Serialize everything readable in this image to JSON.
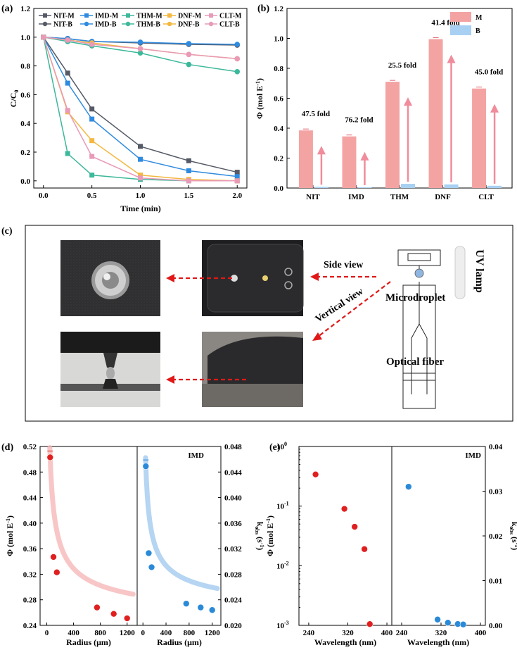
{
  "panel_labels": {
    "a": "(a)",
    "b": "(b)",
    "c": "(c)",
    "d": "(d)",
    "e": "(e)"
  },
  "colors": {
    "NIT": "#555a66",
    "IMD": "#2f8be0",
    "THM": "#3cb89a",
    "DNF": "#f4b73f",
    "CLT": "#e89ab8",
    "bar_M": "#f4a3a3",
    "bar_B": "#a8d0f2",
    "red_pt": "#e02020",
    "blue_pt": "#2a8ad8",
    "red_fit": "#f5b3b3",
    "blue_fit": "#9cc7ee",
    "arrow": "#f08c9c",
    "dash_arrow": "#e01818"
  },
  "chart_data": [
    {
      "id": "a",
      "type": "line",
      "xlabel": "Time (min)",
      "ylabel": "C/C",
      "ylabel_sub": "0",
      "xlim": [
        -0.1,
        2.1
      ],
      "ylim": [
        -0.05,
        1.2
      ],
      "xticks": [
        "0.0",
        "0.5",
        "1.0",
        "1.5",
        "2.0"
      ],
      "yticks": [
        "0.0",
        "0.2",
        "0.4",
        "0.6",
        "0.8",
        "1.0",
        "1.2"
      ],
      "x": [
        0,
        0.25,
        0.5,
        1.0,
        1.5,
        2.0
      ],
      "series": [
        {
          "name": "NIT-M",
          "color_key": "NIT",
          "marker": "square",
          "values": [
            1.0,
            0.75,
            0.5,
            0.24,
            0.14,
            0.06
          ]
        },
        {
          "name": "IMD-M",
          "color_key": "IMD",
          "marker": "square",
          "values": [
            1.0,
            0.68,
            0.43,
            0.15,
            0.07,
            0.03
          ]
        },
        {
          "name": "THM-M",
          "color_key": "THM",
          "marker": "square",
          "values": [
            1.0,
            0.19,
            0.04,
            0.01,
            0.0,
            0.0
          ]
        },
        {
          "name": "DNF-M",
          "color_key": "DNF",
          "marker": "square",
          "values": [
            1.0,
            0.48,
            0.28,
            0.04,
            0.01,
            0.0
          ]
        },
        {
          "name": "CLT-M",
          "color_key": "CLT",
          "marker": "square",
          "values": [
            1.0,
            0.49,
            0.17,
            0.02,
            0.0,
            0.0
          ]
        },
        {
          "name": "NIT-B",
          "color_key": "NIT",
          "marker": "circle",
          "values": [
            1.0,
            0.99,
            0.97,
            0.96,
            0.95,
            0.945
          ]
        },
        {
          "name": "IMD-B",
          "color_key": "IMD",
          "marker": "circle",
          "values": [
            1.0,
            0.99,
            0.97,
            0.965,
            0.955,
            0.95
          ]
        },
        {
          "name": "THM-B",
          "color_key": "THM",
          "marker": "circle",
          "values": [
            1.0,
            0.97,
            0.94,
            0.89,
            0.81,
            0.76
          ]
        },
        {
          "name": "DNF-B",
          "color_key": "DNF",
          "marker": "circle",
          "values": [
            1.0,
            0.98,
            0.96,
            0.92,
            0.88,
            0.85
          ]
        },
        {
          "name": "CLT-B",
          "color_key": "CLT",
          "marker": "circle",
          "values": [
            1.0,
            0.98,
            0.95,
            0.92,
            0.88,
            0.85
          ]
        }
      ]
    },
    {
      "id": "b",
      "type": "bar",
      "ylabel": "Φ (mol E",
      "ylabel_sup": "-1",
      "ylabel_close": ")",
      "categories": [
        "NIT",
        "IMD",
        "THM",
        "DNF",
        "CLT"
      ],
      "ylim": [
        0,
        1.2
      ],
      "yticks": [
        "0.0",
        "0.2",
        "0.4",
        "0.6",
        "0.8",
        "1.0",
        "1.2"
      ],
      "series": [
        {
          "name": "M",
          "color_key": "bar_M",
          "values": [
            0.385,
            0.345,
            0.71,
            0.995,
            0.665
          ]
        },
        {
          "name": "B",
          "color_key": "bar_B",
          "values": [
            0.008,
            0.005,
            0.028,
            0.024,
            0.015
          ]
        }
      ],
      "fold_labels": [
        "47.5 fold",
        "76.2 fold",
        "25.5 fold",
        "41.4 fold",
        "45.0 fold"
      ]
    },
    {
      "id": "d",
      "type": "scatter",
      "xlabel": "Radius (μm)",
      "ylabel": "Φ (mol E",
      "ylabel_sup": "-1",
      "ylabel_close": ")",
      "ylabel_right": "k",
      "ylabel_right_sub": "obs",
      "ylabel_right_unit": " (s",
      "ylabel_right_sup": "-1",
      "ylabel_right_close": ")",
      "annotation": "IMD",
      "xlim": [
        -100,
        1350
      ],
      "xticks": [
        "0",
        "400",
        "800",
        "1200"
      ],
      "left": {
        "ylim": [
          0.24,
          0.52
        ],
        "yticks": [
          "0.24",
          "0.28",
          "0.32",
          "0.36",
          "0.40",
          "0.44",
          "0.48",
          "0.52"
        ],
        "x": [
          50,
          100,
          150,
          750,
          1000,
          1200
        ],
        "y": [
          0.503,
          0.347,
          0.323,
          0.268,
          0.258,
          0.251
        ]
      },
      "right": {
        "ylim": [
          0.02,
          0.048
        ],
        "yticks": [
          "0.020",
          "0.024",
          "0.028",
          "0.032",
          "0.036",
          "0.040",
          "0.044",
          "0.048"
        ],
        "x": [
          50,
          100,
          150,
          750,
          1000,
          1200
        ],
        "y": [
          0.0449,
          0.0313,
          0.0291,
          0.0234,
          0.0228,
          0.0224
        ]
      }
    },
    {
      "id": "e",
      "type": "scatter",
      "xlabel": "Wavelength (nm)",
      "ylabel": "Φ (mol E",
      "ylabel_sup": "-1",
      "ylabel_close": ")",
      "ylabel_right": "k",
      "ylabel_right_sub": "obs",
      "ylabel_right_unit": " (s",
      "ylabel_right_sup": "-1",
      "ylabel_right_close": ")",
      "annotation": "IMD",
      "xlim": [
        220,
        410
      ],
      "xticks": [
        "240",
        "320",
        "400"
      ],
      "left": {
        "scale": "log",
        "ylim": [
          0.001,
          1
        ],
        "yticks": [
          {
            "base": "10",
            "exp": "-3"
          },
          {
            "base": "10",
            "exp": "-2"
          },
          {
            "base": "10",
            "exp": "-1"
          },
          {
            "base": "10",
            "exp": "0"
          }
        ],
        "x": [
          254,
          313,
          334,
          354,
          365
        ],
        "y": [
          0.34,
          0.09,
          0.045,
          0.019,
          0.00105
        ]
      },
      "right": {
        "ylim": [
          0,
          0.04
        ],
        "yticks": [
          "0.00",
          "0.01",
          "0.02",
          "0.03",
          "0.04"
        ],
        "x": [
          254,
          313,
          334,
          354,
          365
        ],
        "y": [
          0.031,
          0.0013,
          0.0006,
          0.0003,
          0.0002
        ]
      }
    }
  ],
  "panel_c": {
    "side_view": "Side view",
    "vertical_view": "Vertical view",
    "microdroplet": "Microdroplet",
    "optical_fiber": "Optical fiber",
    "uv_lamp": "UV lamp"
  }
}
